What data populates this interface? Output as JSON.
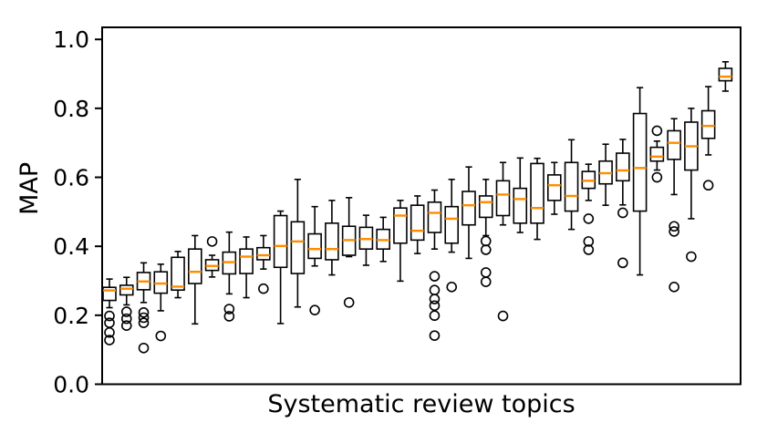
{
  "figure": {
    "background": "#ffffff"
  },
  "chart_data": {
    "type": "boxplot",
    "title": "",
    "xlabel": "Systematic review topics",
    "ylabel": "MAP",
    "ylim": [
      0.0,
      1.035
    ],
    "xtick_labels": [],
    "grid": false,
    "legend": "none",
    "n_boxes": 37,
    "yticks": [
      {
        "label": "0.0",
        "value": 0.0
      },
      {
        "label": "0.2",
        "value": 0.2
      },
      {
        "label": "0.4",
        "value": 0.4
      },
      {
        "label": "0.6",
        "value": 0.6
      },
      {
        "label": "0.8",
        "value": 0.8
      },
      {
        "label": "1.0",
        "value": 1.0
      }
    ],
    "colors": {
      "box_stroke": "#000000",
      "median": "#ff8c00",
      "flier_stroke": "#000000",
      "axis": "#000000",
      "text": "#000000",
      "box_fill": "#ffffff"
    },
    "boxes": [
      {
        "whislo": 0.222,
        "q1": 0.243,
        "med": 0.272,
        "q3": 0.281,
        "whishi": 0.305,
        "fliers": [
          0.198,
          0.178,
          0.15,
          0.128
        ]
      },
      {
        "whislo": 0.23,
        "q1": 0.259,
        "med": 0.277,
        "q3": 0.287,
        "whishi": 0.31,
        "fliers": [
          0.21,
          0.19,
          0.17
        ]
      },
      {
        "whislo": 0.237,
        "q1": 0.274,
        "med": 0.298,
        "q3": 0.324,
        "whishi": 0.352,
        "fliers": [
          0.208,
          0.193,
          0.178,
          0.105
        ]
      },
      {
        "whislo": 0.213,
        "q1": 0.264,
        "med": 0.292,
        "q3": 0.326,
        "whishi": 0.348,
        "fliers": [
          0.14
        ]
      },
      {
        "whislo": 0.251,
        "q1": 0.273,
        "med": 0.283,
        "q3": 0.368,
        "whishi": 0.385,
        "fliers": []
      },
      {
        "whislo": 0.175,
        "q1": 0.292,
        "med": 0.326,
        "q3": 0.392,
        "whishi": 0.431,
        "fliers": []
      },
      {
        "whislo": 0.311,
        "q1": 0.33,
        "med": 0.343,
        "q3": 0.361,
        "whishi": 0.374,
        "fliers": [
          0.414
        ]
      },
      {
        "whislo": 0.262,
        "q1": 0.32,
        "med": 0.354,
        "q3": 0.383,
        "whishi": 0.441,
        "fliers": [
          0.218,
          0.197
        ]
      },
      {
        "whislo": 0.251,
        "q1": 0.321,
        "med": 0.37,
        "q3": 0.392,
        "whishi": 0.427,
        "fliers": []
      },
      {
        "whislo": 0.334,
        "q1": 0.361,
        "med": 0.374,
        "q3": 0.396,
        "whishi": 0.431,
        "fliers": [
          0.277
        ]
      },
      {
        "whislo": 0.176,
        "q1": 0.339,
        "med": 0.401,
        "q3": 0.489,
        "whishi": 0.502,
        "fliers": []
      },
      {
        "whislo": 0.224,
        "q1": 0.321,
        "med": 0.414,
        "q3": 0.471,
        "whishi": 0.594,
        "fliers": []
      },
      {
        "whislo": 0.343,
        "q1": 0.365,
        "med": 0.392,
        "q3": 0.436,
        "whishi": 0.515,
        "fliers": [
          0.215
        ]
      },
      {
        "whislo": 0.317,
        "q1": 0.361,
        "med": 0.392,
        "q3": 0.467,
        "whishi": 0.533,
        "fliers": []
      },
      {
        "whislo": 0.37,
        "q1": 0.374,
        "med": 0.418,
        "q3": 0.458,
        "whishi": 0.541,
        "fliers": [
          0.237
        ]
      },
      {
        "whislo": 0.345,
        "q1": 0.392,
        "med": 0.421,
        "q3": 0.455,
        "whishi": 0.49,
        "fliers": []
      },
      {
        "whislo": 0.356,
        "q1": 0.392,
        "med": 0.418,
        "q3": 0.449,
        "whishi": 0.484,
        "fliers": []
      },
      {
        "whislo": 0.299,
        "q1": 0.409,
        "med": 0.489,
        "q3": 0.511,
        "whishi": 0.533,
        "fliers": []
      },
      {
        "whislo": 0.379,
        "q1": 0.418,
        "med": 0.445,
        "q3": 0.519,
        "whishi": 0.546,
        "fliers": []
      },
      {
        "whislo": 0.392,
        "q1": 0.44,
        "med": 0.497,
        "q3": 0.528,
        "whishi": 0.563,
        "fliers": [
          0.313,
          0.273,
          0.247,
          0.228,
          0.199,
          0.141
        ]
      },
      {
        "whislo": 0.383,
        "q1": 0.409,
        "med": 0.48,
        "q3": 0.515,
        "whishi": 0.594,
        "fliers": [
          0.282
        ]
      },
      {
        "whislo": 0.365,
        "q1": 0.462,
        "med": 0.519,
        "q3": 0.559,
        "whishi": 0.63,
        "fliers": []
      },
      {
        "whislo": 0.431,
        "q1": 0.484,
        "med": 0.528,
        "q3": 0.546,
        "whishi": 0.594,
        "fliers": [
          0.415,
          0.39,
          0.324,
          0.297
        ]
      },
      {
        "whislo": 0.462,
        "q1": 0.489,
        "med": 0.55,
        "q3": 0.59,
        "whishi": 0.643,
        "fliers": [
          0.198
        ]
      },
      {
        "whislo": 0.44,
        "q1": 0.467,
        "med": 0.537,
        "q3": 0.568,
        "whishi": 0.656,
        "fliers": []
      },
      {
        "whislo": 0.42,
        "q1": 0.467,
        "med": 0.511,
        "q3": 0.64,
        "whishi": 0.655,
        "fliers": []
      },
      {
        "whislo": 0.493,
        "q1": 0.533,
        "med": 0.577,
        "q3": 0.607,
        "whishi": 0.643,
        "fliers": []
      },
      {
        "whislo": 0.449,
        "q1": 0.502,
        "med": 0.546,
        "q3": 0.643,
        "whishi": 0.709,
        "fliers": []
      },
      {
        "whislo": 0.533,
        "q1": 0.568,
        "med": 0.59,
        "q3": 0.617,
        "whishi": 0.638,
        "fliers": [
          0.48,
          0.414,
          0.39
        ]
      },
      {
        "whislo": 0.519,
        "q1": 0.581,
        "med": 0.612,
        "q3": 0.647,
        "whishi": 0.696,
        "fliers": []
      },
      {
        "whislo": 0.52,
        "q1": 0.59,
        "med": 0.62,
        "q3": 0.67,
        "whishi": 0.71,
        "fliers": [
          0.497,
          0.352
        ]
      },
      {
        "whislo": 0.317,
        "q1": 0.502,
        "med": 0.627,
        "q3": 0.785,
        "whishi": 0.86,
        "fliers": []
      },
      {
        "whislo": 0.621,
        "q1": 0.647,
        "med": 0.66,
        "q3": 0.687,
        "whishi": 0.705,
        "fliers": [
          0.735,
          0.6
        ]
      },
      {
        "whislo": 0.55,
        "q1": 0.652,
        "med": 0.7,
        "q3": 0.735,
        "whishi": 0.77,
        "fliers": [
          0.458,
          0.443,
          0.282
        ]
      },
      {
        "whislo": 0.48,
        "q1": 0.621,
        "med": 0.69,
        "q3": 0.76,
        "whishi": 0.8,
        "fliers": [
          0.37
        ]
      },
      {
        "whislo": 0.665,
        "q1": 0.713,
        "med": 0.749,
        "q3": 0.793,
        "whishi": 0.863,
        "fliers": [
          0.577
        ]
      },
      {
        "whislo": 0.85,
        "q1": 0.88,
        "med": 0.892,
        "q3": 0.916,
        "whishi": 0.935,
        "fliers": []
      }
    ]
  }
}
